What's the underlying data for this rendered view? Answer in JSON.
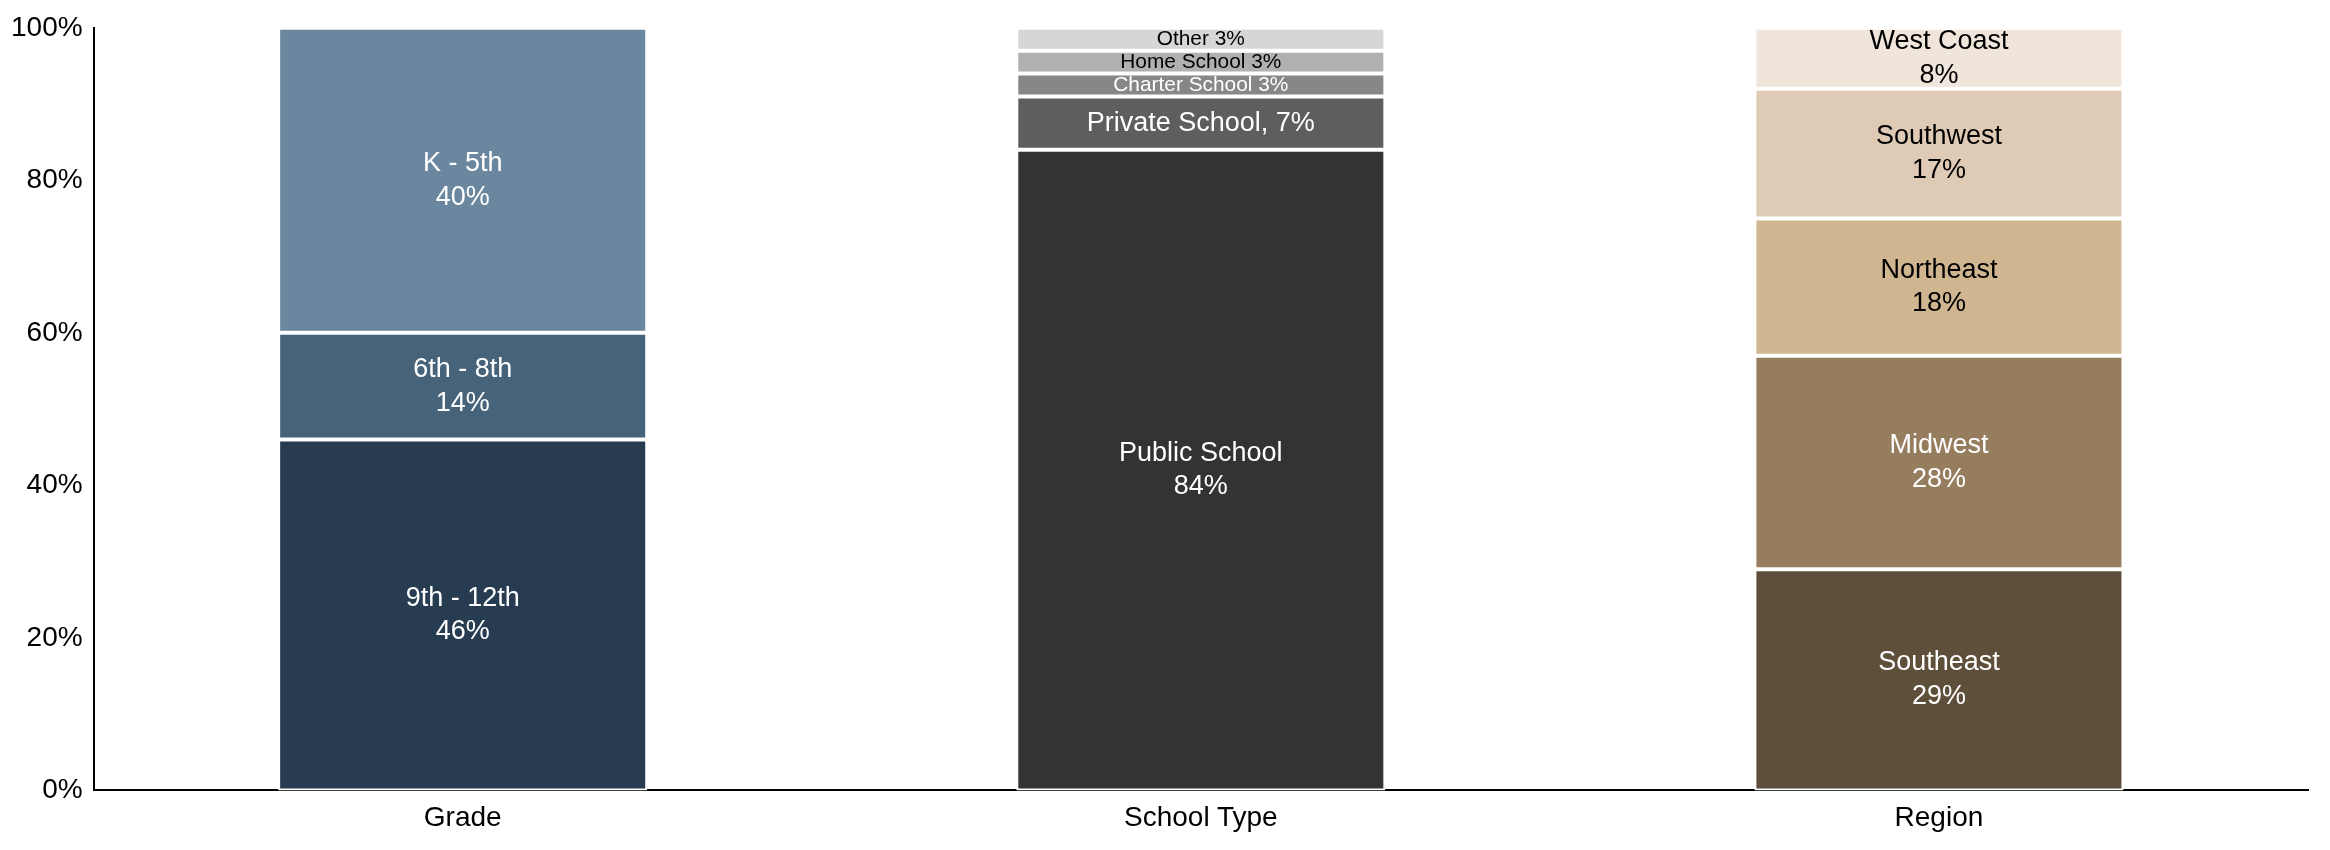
{
  "chart_data": {
    "type": "bar",
    "stacked": true,
    "categories": [
      "Grade",
      "School Type",
      "Region"
    ],
    "ylim": [
      0,
      100
    ],
    "yticks": [
      {
        "value": 0,
        "label": "0%"
      },
      {
        "value": 20,
        "label": "20%"
      },
      {
        "value": 40,
        "label": "40%"
      },
      {
        "value": 60,
        "label": "60%"
      },
      {
        "value": 80,
        "label": "80%"
      },
      {
        "value": 100,
        "label": "100%"
      }
    ],
    "grid": false,
    "legend": false,
    "series": [
      {
        "color": "#273c50",
        "values": [
          46,
          null,
          null
        ],
        "value_labels": [
          "9th - 12th\n46%",
          null,
          null
        ]
      },
      {
        "color": "#46637a",
        "values": [
          14,
          null,
          null
        ],
        "value_labels": [
          "6th - 8th\n14%",
          null,
          null
        ]
      },
      {
        "color": "#6b879f",
        "values": [
          40,
          null,
          null
        ],
        "value_labels": [
          "K - 5th\n40%",
          null,
          null
        ]
      },
      {
        "color": "#333333",
        "values": [
          null,
          84,
          null
        ],
        "value_labels": [
          null,
          "Public School\n84%",
          null
        ]
      },
      {
        "color": "#5e5e5e",
        "values": [
          null,
          7,
          null
        ],
        "value_labels": [
          null,
          "Private School, 7%",
          null
        ]
      },
      {
        "color": "#878787",
        "values": [
          null,
          3,
          null
        ],
        "value_labels": [
          null,
          "Charter School 3%",
          null
        ]
      },
      {
        "color": "#b0b0b0",
        "values": [
          null,
          3,
          null
        ],
        "value_labels": [
          null,
          "Home School 3%",
          null
        ]
      },
      {
        "color": "#d6d6d6",
        "values": [
          null,
          3,
          null
        ],
        "value_labels": [
          null,
          "Other 3%",
          null
        ]
      },
      {
        "color": "#5e4f3a",
        "values": [
          null,
          null,
          29
        ],
        "value_labels": [
          null,
          null,
          "Southeast\n29%"
        ]
      },
      {
        "color": "#967d5e",
        "values": [
          null,
          null,
          28
        ],
        "value_labels": [
          null,
          null,
          "Midwest\n28%"
        ]
      },
      {
        "color": "#d0b690",
        "values": [
          null,
          null,
          18
        ],
        "value_labels": [
          null,
          null,
          "Northeast\n18%"
        ]
      },
      {
        "color": "#dfcbb5",
        "values": [
          null,
          null,
          17
        ],
        "value_labels": [
          null,
          null,
          "Southwest\n17%"
        ]
      },
      {
        "color": "#efe5da",
        "values": [
          null,
          null,
          8
        ],
        "value_labels": [
          null,
          null,
          "West Coast\n8%"
        ]
      }
    ]
  }
}
